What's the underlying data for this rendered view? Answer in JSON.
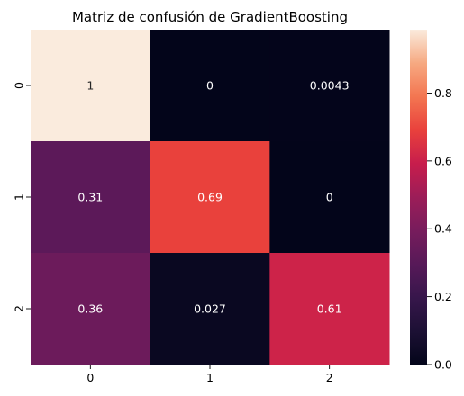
{
  "chart_data": {
    "type": "heatmap",
    "title": "Matriz de confusión de GradientBoosting",
    "xlabel": "",
    "ylabel": "",
    "x_categories": [
      "0",
      "1",
      "2"
    ],
    "y_categories": [
      "0",
      "1",
      "2"
    ],
    "values": [
      [
        1,
        0,
        0.0043
      ],
      [
        0.31,
        0.69,
        0
      ],
      [
        0.36,
        0.027,
        0.61
      ]
    ],
    "cell_labels": [
      [
        "1",
        "0",
        "0.0043"
      ],
      [
        "0.31",
        "0.69",
        "0"
      ],
      [
        "0.36",
        "0.027",
        "0.61"
      ]
    ],
    "colormap": "rocket",
    "colorbar": {
      "range": [
        0,
        0.987
      ],
      "ticks": [
        0.0,
        0.2,
        0.4,
        0.6,
        0.8
      ],
      "tick_labels": [
        "0.0",
        "0.2",
        "0.4",
        "0.6",
        "0.8"
      ]
    },
    "annotations": true,
    "grid": false,
    "legend": "none"
  }
}
